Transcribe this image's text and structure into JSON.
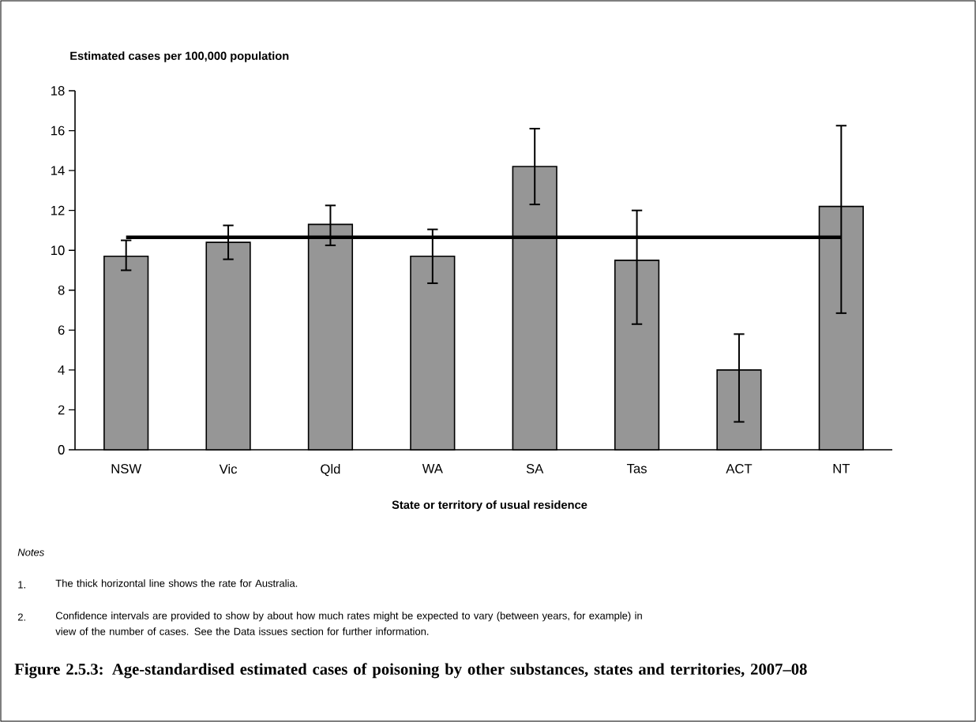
{
  "chart_data": {
    "type": "bar",
    "title": "Figure 2.5.3: Age-standardised estimated cases of poisoning by other substances, states and territories, 2007–08",
    "ylabel": "Estimated cases per 100,000 population",
    "xlabel": "State or territory of usual residence",
    "categories": [
      "NSW",
      "Vic",
      "Qld",
      "WA",
      "SA",
      "Tas",
      "ACT",
      "NT"
    ],
    "values": [
      9.7,
      10.4,
      11.3,
      9.7,
      14.2,
      9.5,
      4.0,
      12.2
    ],
    "errors": [
      [
        9.0,
        10.5
      ],
      [
        9.55,
        11.25
      ],
      [
        10.25,
        12.25
      ],
      [
        8.35,
        11.05
      ],
      [
        12.3,
        16.1
      ],
      [
        6.3,
        12.0
      ],
      [
        1.4,
        5.8
      ],
      [
        6.85,
        16.25
      ]
    ],
    "color": "#969696",
    "ylim": [
      0,
      18
    ],
    "yticks": [
      0,
      2,
      4,
      6,
      8,
      10,
      12,
      14,
      16,
      18
    ],
    "ref_lines": [
      {
        "axis": "y",
        "value": 10.65,
        "color": "#000000"
      }
    ],
    "annotations": [
      "Notes",
      "1.",
      "The thick horizontal line shows the rate for Australia.",
      "2.",
      "Confidence intervals are provided to show by about how much rates might be expected to vary (between years, for example) in view of the number of cases. See the Data issues section for further information."
    ]
  }
}
